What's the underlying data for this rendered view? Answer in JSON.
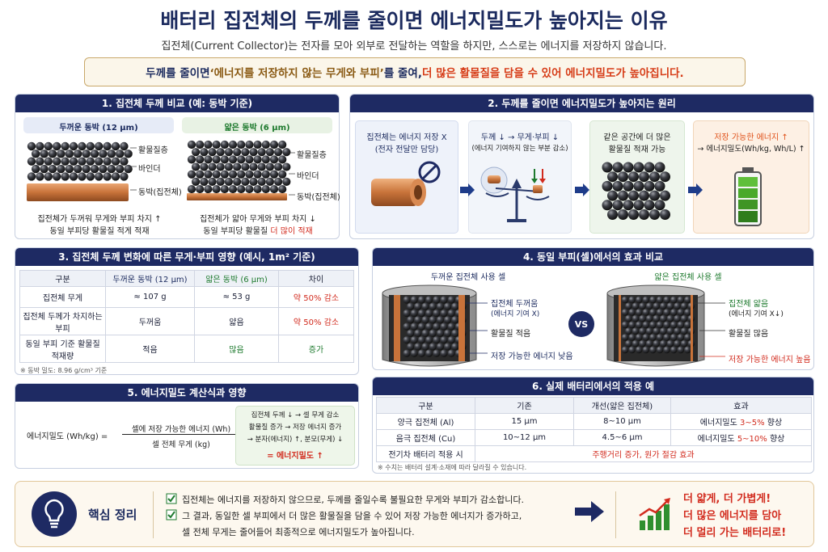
{
  "header": {
    "title": "배터리 집전체의 두께를 줄이면 에너지밀도가 높아지는 이유",
    "subtitle": "집전체(Current Collector)는 전자를 모아 외부로 전달하는 역할을 하지만, 스스로는 에너지를 저장하지 않습니다.",
    "banner_a": "두께를 줄이면 ",
    "banner_b": "‘에너지를 저장하지 않는 무게와 부피’",
    "banner_c": "를 줄여, ",
    "banner_d": "더 많은 활물질을 담을 수 있어 에너지밀도가 높아집니다."
  },
  "p1": {
    "title": "1. 집전체 두께 비교 (예: 동박 기준)",
    "thick_label": "두꺼운 동박 (12 μm)",
    "thin_label": "얇은 동박 (6 μm)",
    "lbl_active": "활물질층",
    "lbl_binder": "바인더",
    "lbl_foil": "동박(집전체)",
    "thick_note1": "집전체가 두꺼워 무게와 부피 차지 ↑",
    "thick_note2": "동일 부피당 활물질 적게 적재",
    "thin_note1": "집전체가 얇아 무게와 부피 차지 ↓",
    "thin_note2a": "동일 부피당 활물질 ",
    "thin_note2b": "더 많이 적재"
  },
  "p2": {
    "title": "2. 두께를 줄이면 에너지밀도가 높아지는 원리",
    "s1a": "집전체는 에너지 저장 X",
    "s1b": "(전자 전달만 담당)",
    "s2a": "두께 ↓ → 무게·부피 ↓",
    "s2b": "(에너지 기여하지 않는 부분 감소)",
    "s3a": "같은 공간에 더 많은",
    "s3b": "활물질 적재 가능",
    "s4a": "저장 가능한 에너지 ↑",
    "s4b": "→ 에너지밀도(Wh/kg, Wh/L) ↑"
  },
  "p3": {
    "title": "3. 집전체 두께 변화에 따른 무게·부피 영향 (예시, 1m² 기준)",
    "headers": [
      "구분",
      "두꺼운 동박 (12 μm)",
      "얇은 동박 (6 μm)",
      "차이"
    ],
    "rows": [
      [
        "집전체 무게",
        "≈ 107 g",
        "≈ 53 g",
        "약 50% 감소"
      ],
      [
        "집전체 두께가 차지하는 부피",
        "두꺼움",
        "얇음",
        "약 50% 감소"
      ],
      [
        "동일 부피 기준 활물질 적재량",
        "적음",
        "많음",
        "증가"
      ]
    ],
    "footnote": "※ 동박 밀도: 8.96 g/cm³ 기준"
  },
  "p4": {
    "title": "4. 동일 부피(셀)에서의 효과 비교",
    "left_title": "두꺼운 집전체 사용 셀",
    "right_title": "얇은 집전체 사용 셀",
    "l1a": "집전체 두꺼움",
    "l1b": "(에너지 기여 X)",
    "l2": "활물질 적음",
    "l3": "저장 가능한 에너지 낮음",
    "vs": "VS",
    "r1a": "집전체 얇음",
    "r1b": "(에너지 기여 X↓)",
    "r2": "활물질 많음",
    "r3": "저장 가능한 에너지 높음"
  },
  "p5": {
    "title": "5. 에너지밀도 계산식과 영향",
    "lhs": "에너지밀도 (Wh/kg)  =",
    "num": "셀에 저장 가능한 에너지 (Wh)",
    "den": "셀 전체 무게 (kg)",
    "e1": "집전체 두께 ↓ → 셀 무게 감소",
    "e2": "활물질 증가 → 저장 에너지 증가",
    "e3": "→ 분자(에너지) ↑, 분모(무게) ↓",
    "e4": "= 에너지밀도 ↑"
  },
  "p6": {
    "title": "6. 실제 배터리에서의 적용 예",
    "headers": [
      "구분",
      "기존",
      "개선(얇은 집전체)",
      "효과"
    ],
    "rows": [
      [
        "양극 집전체 (Al)",
        "15 μm",
        "8~10 μm",
        "에너지밀도 ",
        "3~5%",
        " 향상"
      ],
      [
        "음극 집전체 (Cu)",
        "10~12 μm",
        "4.5~6 μm",
        "에너지밀도 ",
        "5~10%",
        " 향상"
      ]
    ],
    "ev_label": "전기차 배터리 적용 시",
    "ev_effect": "주행거리 증가, 원가 절감 효과",
    "footnote": "※ 수치는 배터리 설계·소재에 따라 달라질 수 있습니다."
  },
  "summary": {
    "title": "핵심 정리",
    "b1": "집전체는 에너지를 저장하지 않으므로, 두께를 줄일수록 불필요한 무게와 부피가 감소합니다.",
    "b2a": "그 결과, 동일한 셀 부피에서 더 많은 활물질을 담을 수 있어 저장 가능한 에너지가 증가하고,",
    "b2b": "셀 전체 무게는 줄어들어 최종적으로 에너지밀도가 높아집니다.",
    "r1": "더 얇게, 더 가볍게!",
    "r2": "더 많은 에너지를 담아",
    "r3": "더 멀리 가는 배터리로!"
  },
  "colors": {
    "navy": "#1e2a63",
    "red": "#d22b1e",
    "green": "#1e7a2e",
    "copper": "#c8733a"
  }
}
